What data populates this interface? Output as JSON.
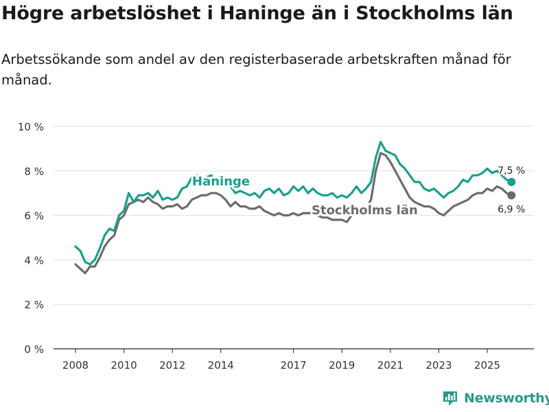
{
  "header": {
    "title": "Högre arbetslöshet i Haninge än i Stockholms län",
    "subtitle": "Arbetssökande som andel av den registerbaserade arbetskraften månad för månad."
  },
  "chart_data": {
    "type": "line",
    "title": "Högre arbetslöshet i Haninge än i Stockholms län",
    "subtitle": "Arbetssökande som andel av den registerbaserade arbetskraften månad för månad.",
    "xlabel": "",
    "ylabel": "",
    "xlim": [
      2007.8,
      2026.9
    ],
    "ylim": [
      0,
      10
    ],
    "yticks": [
      0,
      2,
      4,
      6,
      8,
      10
    ],
    "ytick_labels": [
      "0 %",
      "2 %",
      "4 %",
      "6 %",
      "8 %",
      "10 %"
    ],
    "xticks": [
      2008,
      2010,
      2012,
      2014,
      2017,
      2019,
      2021,
      2023,
      2025
    ],
    "xtick_labels": [
      "2008",
      "2010",
      "2012",
      "2014",
      "2017",
      "2019",
      "2021",
      "2023",
      "2025"
    ],
    "grid": "horizontal",
    "series": [
      {
        "name": "Haninge",
        "color": "#1a9e8f",
        "last_label": "7,5 %",
        "points": [
          [
            2008.0,
            4.6
          ],
          [
            2008.2,
            4.4
          ],
          [
            2008.4,
            3.9
          ],
          [
            2008.6,
            3.8
          ],
          [
            2008.8,
            4.0
          ],
          [
            2009.0,
            4.5
          ],
          [
            2009.2,
            5.1
          ],
          [
            2009.4,
            5.4
          ],
          [
            2009.6,
            5.3
          ],
          [
            2009.8,
            6.0
          ],
          [
            2010.0,
            6.2
          ],
          [
            2010.2,
            7.0
          ],
          [
            2010.4,
            6.6
          ],
          [
            2010.6,
            6.9
          ],
          [
            2010.8,
            6.9
          ],
          [
            2011.0,
            7.0
          ],
          [
            2011.2,
            6.8
          ],
          [
            2011.4,
            7.1
          ],
          [
            2011.6,
            6.7
          ],
          [
            2011.8,
            6.8
          ],
          [
            2012.0,
            6.7
          ],
          [
            2012.2,
            6.8
          ],
          [
            2012.4,
            7.2
          ],
          [
            2012.6,
            7.3
          ],
          [
            2012.8,
            7.7
          ],
          [
            2013.0,
            7.8
          ],
          [
            2013.2,
            7.6
          ],
          [
            2013.4,
            7.7
          ],
          [
            2013.6,
            7.8
          ],
          [
            2013.8,
            7.5
          ],
          [
            2014.0,
            7.8
          ],
          [
            2014.2,
            7.6
          ],
          [
            2014.4,
            7.3
          ],
          [
            2014.6,
            7.0
          ],
          [
            2014.8,
            7.1
          ],
          [
            2015.0,
            7.0
          ],
          [
            2015.2,
            6.9
          ],
          [
            2015.4,
            7.0
          ],
          [
            2015.6,
            6.8
          ],
          [
            2015.8,
            7.1
          ],
          [
            2016.0,
            7.2
          ],
          [
            2016.2,
            7.0
          ],
          [
            2016.4,
            7.2
          ],
          [
            2016.6,
            6.9
          ],
          [
            2016.8,
            7.0
          ],
          [
            2017.0,
            7.3
          ],
          [
            2017.2,
            7.1
          ],
          [
            2017.4,
            7.3
          ],
          [
            2017.6,
            7.0
          ],
          [
            2017.8,
            7.2
          ],
          [
            2018.0,
            7.0
          ],
          [
            2018.2,
            6.9
          ],
          [
            2018.4,
            6.9
          ],
          [
            2018.6,
            7.0
          ],
          [
            2018.8,
            6.8
          ],
          [
            2019.0,
            6.9
          ],
          [
            2019.2,
            6.8
          ],
          [
            2019.4,
            7.0
          ],
          [
            2019.6,
            7.3
          ],
          [
            2019.8,
            7.0
          ],
          [
            2020.0,
            7.2
          ],
          [
            2020.2,
            7.5
          ],
          [
            2020.4,
            8.6
          ],
          [
            2020.6,
            9.3
          ],
          [
            2020.8,
            8.9
          ],
          [
            2021.0,
            8.8
          ],
          [
            2021.2,
            8.7
          ],
          [
            2021.4,
            8.3
          ],
          [
            2021.6,
            8.1
          ],
          [
            2021.8,
            7.8
          ],
          [
            2022.0,
            7.5
          ],
          [
            2022.2,
            7.5
          ],
          [
            2022.4,
            7.2
          ],
          [
            2022.6,
            7.1
          ],
          [
            2022.8,
            7.2
          ],
          [
            2023.0,
            7.0
          ],
          [
            2023.2,
            6.8
          ],
          [
            2023.4,
            7.0
          ],
          [
            2023.6,
            7.1
          ],
          [
            2023.8,
            7.3
          ],
          [
            2024.0,
            7.6
          ],
          [
            2024.2,
            7.5
          ],
          [
            2024.4,
            7.8
          ],
          [
            2024.6,
            7.8
          ],
          [
            2024.8,
            7.9
          ],
          [
            2025.0,
            8.1
          ],
          [
            2025.2,
            7.9
          ],
          [
            2025.4,
            8.0
          ],
          [
            2025.6,
            7.8
          ],
          [
            2025.8,
            7.6
          ],
          [
            2026.0,
            7.5
          ]
        ]
      },
      {
        "name": "Stockholms län",
        "color": "#6b6b6b",
        "last_label": "6,9 %",
        "points": [
          [
            2008.0,
            3.8
          ],
          [
            2008.2,
            3.6
          ],
          [
            2008.4,
            3.4
          ],
          [
            2008.6,
            3.7
          ],
          [
            2008.8,
            3.7
          ],
          [
            2009.0,
            4.1
          ],
          [
            2009.2,
            4.6
          ],
          [
            2009.4,
            4.9
          ],
          [
            2009.6,
            5.1
          ],
          [
            2009.8,
            5.8
          ],
          [
            2010.0,
            6.0
          ],
          [
            2010.2,
            6.5
          ],
          [
            2010.4,
            6.6
          ],
          [
            2010.6,
            6.7
          ],
          [
            2010.8,
            6.6
          ],
          [
            2011.0,
            6.8
          ],
          [
            2011.2,
            6.6
          ],
          [
            2011.4,
            6.5
          ],
          [
            2011.6,
            6.3
          ],
          [
            2011.8,
            6.4
          ],
          [
            2012.0,
            6.4
          ],
          [
            2012.2,
            6.5
          ],
          [
            2012.4,
            6.3
          ],
          [
            2012.6,
            6.4
          ],
          [
            2012.8,
            6.7
          ],
          [
            2013.0,
            6.8
          ],
          [
            2013.2,
            6.9
          ],
          [
            2013.4,
            6.9
          ],
          [
            2013.6,
            7.0
          ],
          [
            2013.8,
            7.0
          ],
          [
            2014.0,
            6.9
          ],
          [
            2014.2,
            6.7
          ],
          [
            2014.4,
            6.4
          ],
          [
            2014.6,
            6.6
          ],
          [
            2014.8,
            6.4
          ],
          [
            2015.0,
            6.4
          ],
          [
            2015.2,
            6.3
          ],
          [
            2015.4,
            6.3
          ],
          [
            2015.6,
            6.4
          ],
          [
            2015.8,
            6.2
          ],
          [
            2016.0,
            6.1
          ],
          [
            2016.2,
            6.0
          ],
          [
            2016.4,
            6.1
          ],
          [
            2016.6,
            6.0
          ],
          [
            2016.8,
            6.0
          ],
          [
            2017.0,
            6.1
          ],
          [
            2017.2,
            6.0
          ],
          [
            2017.4,
            6.1
          ],
          [
            2017.6,
            6.1
          ],
          [
            2017.8,
            6.1
          ],
          [
            2018.0,
            6.0
          ],
          [
            2018.2,
            5.9
          ],
          [
            2018.4,
            5.9
          ],
          [
            2018.6,
            5.8
          ],
          [
            2018.8,
            5.8
          ],
          [
            2019.0,
            5.8
          ],
          [
            2019.2,
            5.7
          ],
          [
            2019.4,
            6.0
          ],
          [
            2019.6,
            6.2
          ],
          [
            2019.8,
            6.3
          ],
          [
            2020.0,
            6.3
          ],
          [
            2020.2,
            6.7
          ],
          [
            2020.4,
            8.0
          ],
          [
            2020.6,
            8.8
          ],
          [
            2020.8,
            8.7
          ],
          [
            2021.0,
            8.4
          ],
          [
            2021.2,
            8.0
          ],
          [
            2021.4,
            7.6
          ],
          [
            2021.6,
            7.2
          ],
          [
            2021.8,
            6.8
          ],
          [
            2022.0,
            6.6
          ],
          [
            2022.2,
            6.5
          ],
          [
            2022.4,
            6.4
          ],
          [
            2022.6,
            6.4
          ],
          [
            2022.8,
            6.3
          ],
          [
            2023.0,
            6.1
          ],
          [
            2023.2,
            6.0
          ],
          [
            2023.4,
            6.2
          ],
          [
            2023.6,
            6.4
          ],
          [
            2023.8,
            6.5
          ],
          [
            2024.0,
            6.6
          ],
          [
            2024.2,
            6.7
          ],
          [
            2024.4,
            6.9
          ],
          [
            2024.6,
            7.0
          ],
          [
            2024.8,
            7.0
          ],
          [
            2025.0,
            7.2
          ],
          [
            2025.2,
            7.1
          ],
          [
            2025.4,
            7.3
          ],
          [
            2025.6,
            7.2
          ],
          [
            2025.8,
            7.0
          ],
          [
            2026.0,
            6.9
          ]
        ]
      }
    ]
  },
  "branding": {
    "name": "Newsworthy",
    "icon": "bar-chart-logo-icon",
    "color": "#2a9988"
  }
}
